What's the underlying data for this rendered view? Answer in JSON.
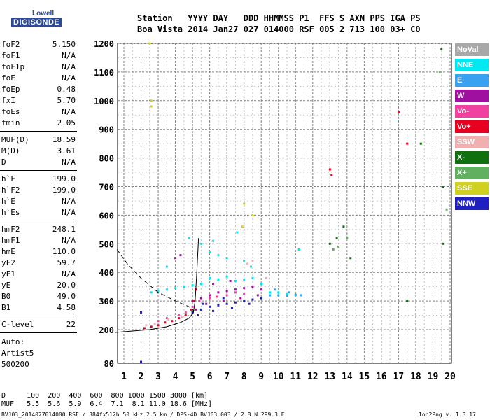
{
  "logo": {
    "top": "Lowell",
    "main": "DIGISONDE"
  },
  "header": {
    "line1": "Station   YYYY DAY   DDD HHMMSS P1  FFS S AXN PPS IGA PS",
    "line2": "Boa Vista 2014 Jan27 027 014000 RSF 005 2 713 100 03+ C0"
  },
  "params": [
    {
      "name": "foF2",
      "value": "5.150"
    },
    {
      "name": "foF1",
      "value": "N/A"
    },
    {
      "name": "foF1p",
      "value": "N/A"
    },
    {
      "name": "foE",
      "value": "N/A"
    },
    {
      "name": "foEp",
      "value": "0.48"
    },
    {
      "name": "fxI",
      "value": "5.70"
    },
    {
      "name": "foEs",
      "value": "N/A"
    },
    {
      "name": "fmin",
      "value": "2.05"
    },
    {
      "name": "MUF(D)",
      "value": "18.59"
    },
    {
      "name": "M(D)",
      "value": "3.61"
    },
    {
      "name": "D",
      "value": "N/A"
    },
    {
      "name": "h`F",
      "value": "199.0"
    },
    {
      "name": "h`F2",
      "value": "199.0"
    },
    {
      "name": "h`E",
      "value": "N/A"
    },
    {
      "name": "h`Es",
      "value": "N/A"
    },
    {
      "name": "hmF2",
      "value": "248.1"
    },
    {
      "name": "hmF1",
      "value": "N/A"
    },
    {
      "name": "hmE",
      "value": "110.0"
    },
    {
      "name": "yF2",
      "value": "59.7"
    },
    {
      "name": "yF1",
      "value": "N/A"
    },
    {
      "name": "yE",
      "value": "20.0"
    },
    {
      "name": "B0",
      "value": "49.0"
    },
    {
      "name": "B1",
      "value": "4.58"
    },
    {
      "name": "C-level",
      "value": "22"
    }
  ],
  "auto": {
    "l1": "Auto:",
    "l2": "Artist5",
    "l3": "500200"
  },
  "legend": [
    {
      "label": "NoVal",
      "color": "#a8a8a8"
    },
    {
      "label": "NNE",
      "color": "#00e8f0"
    },
    {
      "label": "E",
      "color": "#3aa0f0"
    },
    {
      "label": "W",
      "color": "#a010a0"
    },
    {
      "label": "Vo-",
      "color": "#f040a0"
    },
    {
      "label": "Vo+",
      "color": "#e80020"
    },
    {
      "label": "SSW",
      "color": "#f0b0b0"
    },
    {
      "label": "X-",
      "color": "#107010"
    },
    {
      "label": "X+",
      "color": "#60b060"
    },
    {
      "label": "SSE",
      "color": "#d0d020"
    },
    {
      "label": "NNW",
      "color": "#2020c0"
    }
  ],
  "footer": {
    "d_row": "D     100  200  400  600  800 1000 1500 3000 [km]",
    "muf_row": "MUF   5.5  5.6  5.9  6.4  7.1  8.1 11.0 18.6 [MHz]",
    "file": "BVJ03_2014027014000.RSF / 384fx512h 50 kHz 2.5 km / DPS-4D BVJ03 003 / 2.8 N 299.3 E",
    "version": "Ion2Png v. 1.3.17"
  },
  "chart_data": {
    "type": "scatter",
    "xlim": [
      0.5,
      20.3
    ],
    "ylim": [
      80,
      1200
    ],
    "x_ticks": [
      1,
      2,
      3,
      4,
      5,
      6,
      7,
      8,
      9,
      10,
      11,
      12,
      13,
      14,
      15,
      16,
      17,
      18,
      19,
      20
    ],
    "y_ticks": [
      80,
      200,
      300,
      400,
      500,
      600,
      700,
      800,
      900,
      1000,
      1100,
      1200
    ],
    "grid": true,
    "legend_position": "right",
    "series": [
      {
        "name": "NNE",
        "points": [
          [
            2.6,
            330
          ],
          [
            3.0,
            335
          ],
          [
            3.5,
            340
          ],
          [
            4.0,
            345
          ],
          [
            4.5,
            350
          ],
          [
            5.0,
            355
          ],
          [
            5.5,
            360
          ],
          [
            6.0,
            380
          ],
          [
            6.5,
            375
          ],
          [
            7.0,
            385
          ],
          [
            7.5,
            370
          ],
          [
            8.0,
            375
          ],
          [
            8.5,
            380
          ],
          [
            9.0,
            360
          ],
          [
            9.5,
            330
          ],
          [
            10.0,
            330
          ],
          [
            10.5,
            325
          ],
          [
            11.0,
            320
          ],
          [
            11.2,
            480
          ],
          [
            6.0,
            470
          ],
          [
            6.5,
            460
          ],
          [
            7.0,
            450
          ],
          [
            8.0,
            440
          ],
          [
            4.8,
            520
          ],
          [
            5.5,
            500
          ],
          [
            3.5,
            420
          ],
          [
            6.2,
            510
          ],
          [
            7.6,
            540
          ],
          [
            8.4,
            420
          ]
        ]
      },
      {
        "name": "E",
        "points": [
          [
            9.5,
            320
          ],
          [
            10.0,
            320
          ],
          [
            10.5,
            318
          ],
          [
            11.0,
            322
          ],
          [
            11.3,
            320
          ],
          [
            9.8,
            340
          ],
          [
            10.6,
            330
          ]
        ]
      },
      {
        "name": "W",
        "points": [
          [
            5.0,
            300
          ],
          [
            5.5,
            310
          ],
          [
            6.0,
            320
          ],
          [
            6.5,
            330
          ],
          [
            7.0,
            335
          ],
          [
            7.5,
            340
          ],
          [
            8.0,
            345
          ],
          [
            8.5,
            350
          ],
          [
            9.0,
            340
          ],
          [
            5.8,
            290
          ],
          [
            6.8,
            300
          ],
          [
            7.8,
            310
          ],
          [
            8.8,
            320
          ],
          [
            5.2,
            270
          ],
          [
            6.2,
            360
          ],
          [
            7.2,
            370
          ],
          [
            4.0,
            450
          ],
          [
            4.3,
            460
          ]
        ]
      },
      {
        "name": "Vo-",
        "points": [
          [
            4.2,
            250
          ],
          [
            4.6,
            260
          ],
          [
            5.0,
            280
          ],
          [
            5.4,
            300
          ],
          [
            6.0,
            310
          ],
          [
            6.4,
            315
          ],
          [
            7.0,
            320
          ],
          [
            7.5,
            330
          ],
          [
            8.0,
            325
          ],
          [
            3.0,
            230
          ],
          [
            3.5,
            240
          ]
        ]
      },
      {
        "name": "Vo+",
        "points": [
          [
            2.2,
            205
          ],
          [
            2.6,
            210
          ],
          [
            3.0,
            215
          ],
          [
            3.4,
            225
          ],
          [
            3.8,
            230
          ],
          [
            4.2,
            240
          ],
          [
            4.6,
            250
          ],
          [
            4.9,
            270
          ],
          [
            5.1,
            300
          ],
          [
            5.2,
            340
          ],
          [
            13.0,
            760
          ],
          [
            13.1,
            740
          ],
          [
            17.0,
            960
          ],
          [
            17.5,
            850
          ]
        ]
      },
      {
        "name": "SSW",
        "points": [
          [
            2.3,
            215
          ],
          [
            2.8,
            220
          ],
          [
            3.6,
            235
          ],
          [
            4.4,
            245
          ],
          [
            8.2,
            430
          ],
          [
            8.5,
            440
          ],
          [
            9.3,
            380
          ]
        ]
      },
      {
        "name": "X-",
        "points": [
          [
            13.0,
            500
          ],
          [
            13.4,
            520
          ],
          [
            13.8,
            560
          ],
          [
            14.2,
            450
          ],
          [
            18.3,
            850
          ],
          [
            19.5,
            1180
          ],
          [
            19.6,
            700
          ],
          [
            17.5,
            300
          ],
          [
            19.6,
            500
          ]
        ]
      },
      {
        "name": "X+",
        "points": [
          [
            13.2,
            480
          ],
          [
            13.5,
            490
          ],
          [
            14.0,
            520
          ],
          [
            19.4,
            1100
          ],
          [
            19.8,
            620
          ]
        ]
      },
      {
        "name": "SSE",
        "points": [
          [
            2.6,
            1000
          ],
          [
            2.6,
            980
          ],
          [
            2.5,
            1200
          ],
          [
            8.0,
            640
          ],
          [
            8.5,
            600
          ],
          [
            7.9,
            560
          ]
        ]
      },
      {
        "name": "NNW",
        "points": [
          [
            5.0,
            260
          ],
          [
            5.5,
            270
          ],
          [
            6.0,
            280
          ],
          [
            6.5,
            285
          ],
          [
            7.0,
            290
          ],
          [
            7.5,
            295
          ],
          [
            8.0,
            300
          ],
          [
            8.5,
            305
          ],
          [
            9.0,
            310
          ],
          [
            5.3,
            250
          ],
          [
            6.2,
            265
          ],
          [
            7.3,
            275
          ],
          [
            8.3,
            290
          ],
          [
            2.0,
            260
          ],
          [
            2.0,
            85
          ],
          [
            5.6,
            290
          ],
          [
            6.8,
            310
          ]
        ]
      }
    ],
    "curves": [
      {
        "name": "solid-profile",
        "style": "solid",
        "points": [
          [
            0.5,
            190
          ],
          [
            1.5,
            195
          ],
          [
            2.5,
            200
          ],
          [
            3.5,
            210
          ],
          [
            4.3,
            225
          ],
          [
            4.8,
            240
          ],
          [
            5.05,
            260
          ],
          [
            5.15,
            300
          ],
          [
            5.25,
            400
          ],
          [
            5.35,
            520
          ]
        ]
      },
      {
        "name": "dashed-profile",
        "style": "dashed",
        "points": [
          [
            0.6,
            480
          ],
          [
            1.2,
            430
          ],
          [
            2.0,
            380
          ],
          [
            3.0,
            330
          ],
          [
            4.0,
            300
          ],
          [
            4.8,
            280
          ],
          [
            5.1,
            265
          ]
        ]
      }
    ]
  }
}
